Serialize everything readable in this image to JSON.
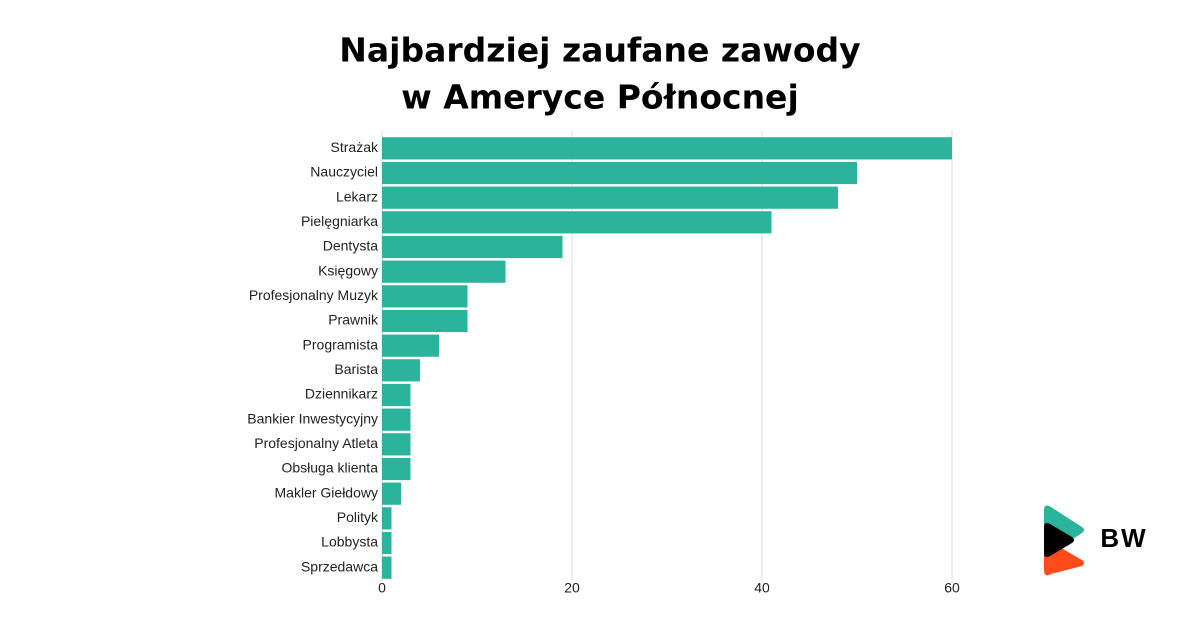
{
  "chart_data": {
    "type": "hbar",
    "title": [
      "Najbardziej zaufane zawody",
      "w Ameryce Północnej"
    ],
    "categories": [
      "Strażak",
      "Nauczyciel",
      "Lekarz",
      "Pielęgniarka",
      "Dentysta",
      "Księgowy",
      "Profesjonalny Muzyk",
      "Prawnik",
      "Programista",
      "Barista",
      "Dziennikarz",
      "Bankier Inwestycyjny",
      "Profesjonalny Atleta",
      "Obsługa klienta",
      "Makler Giełdowy",
      "Polityk",
      "Lobbysta",
      "Sprzedawca"
    ],
    "values": [
      60,
      50,
      48,
      41,
      19,
      13,
      9,
      9,
      6,
      4,
      3,
      3,
      3,
      3,
      2,
      1,
      1,
      1
    ],
    "color": "#2bb39b",
    "xlim": [
      0,
      60
    ],
    "xticks": [
      0,
      20,
      40,
      60
    ],
    "grid": true
  },
  "logo": "BW"
}
